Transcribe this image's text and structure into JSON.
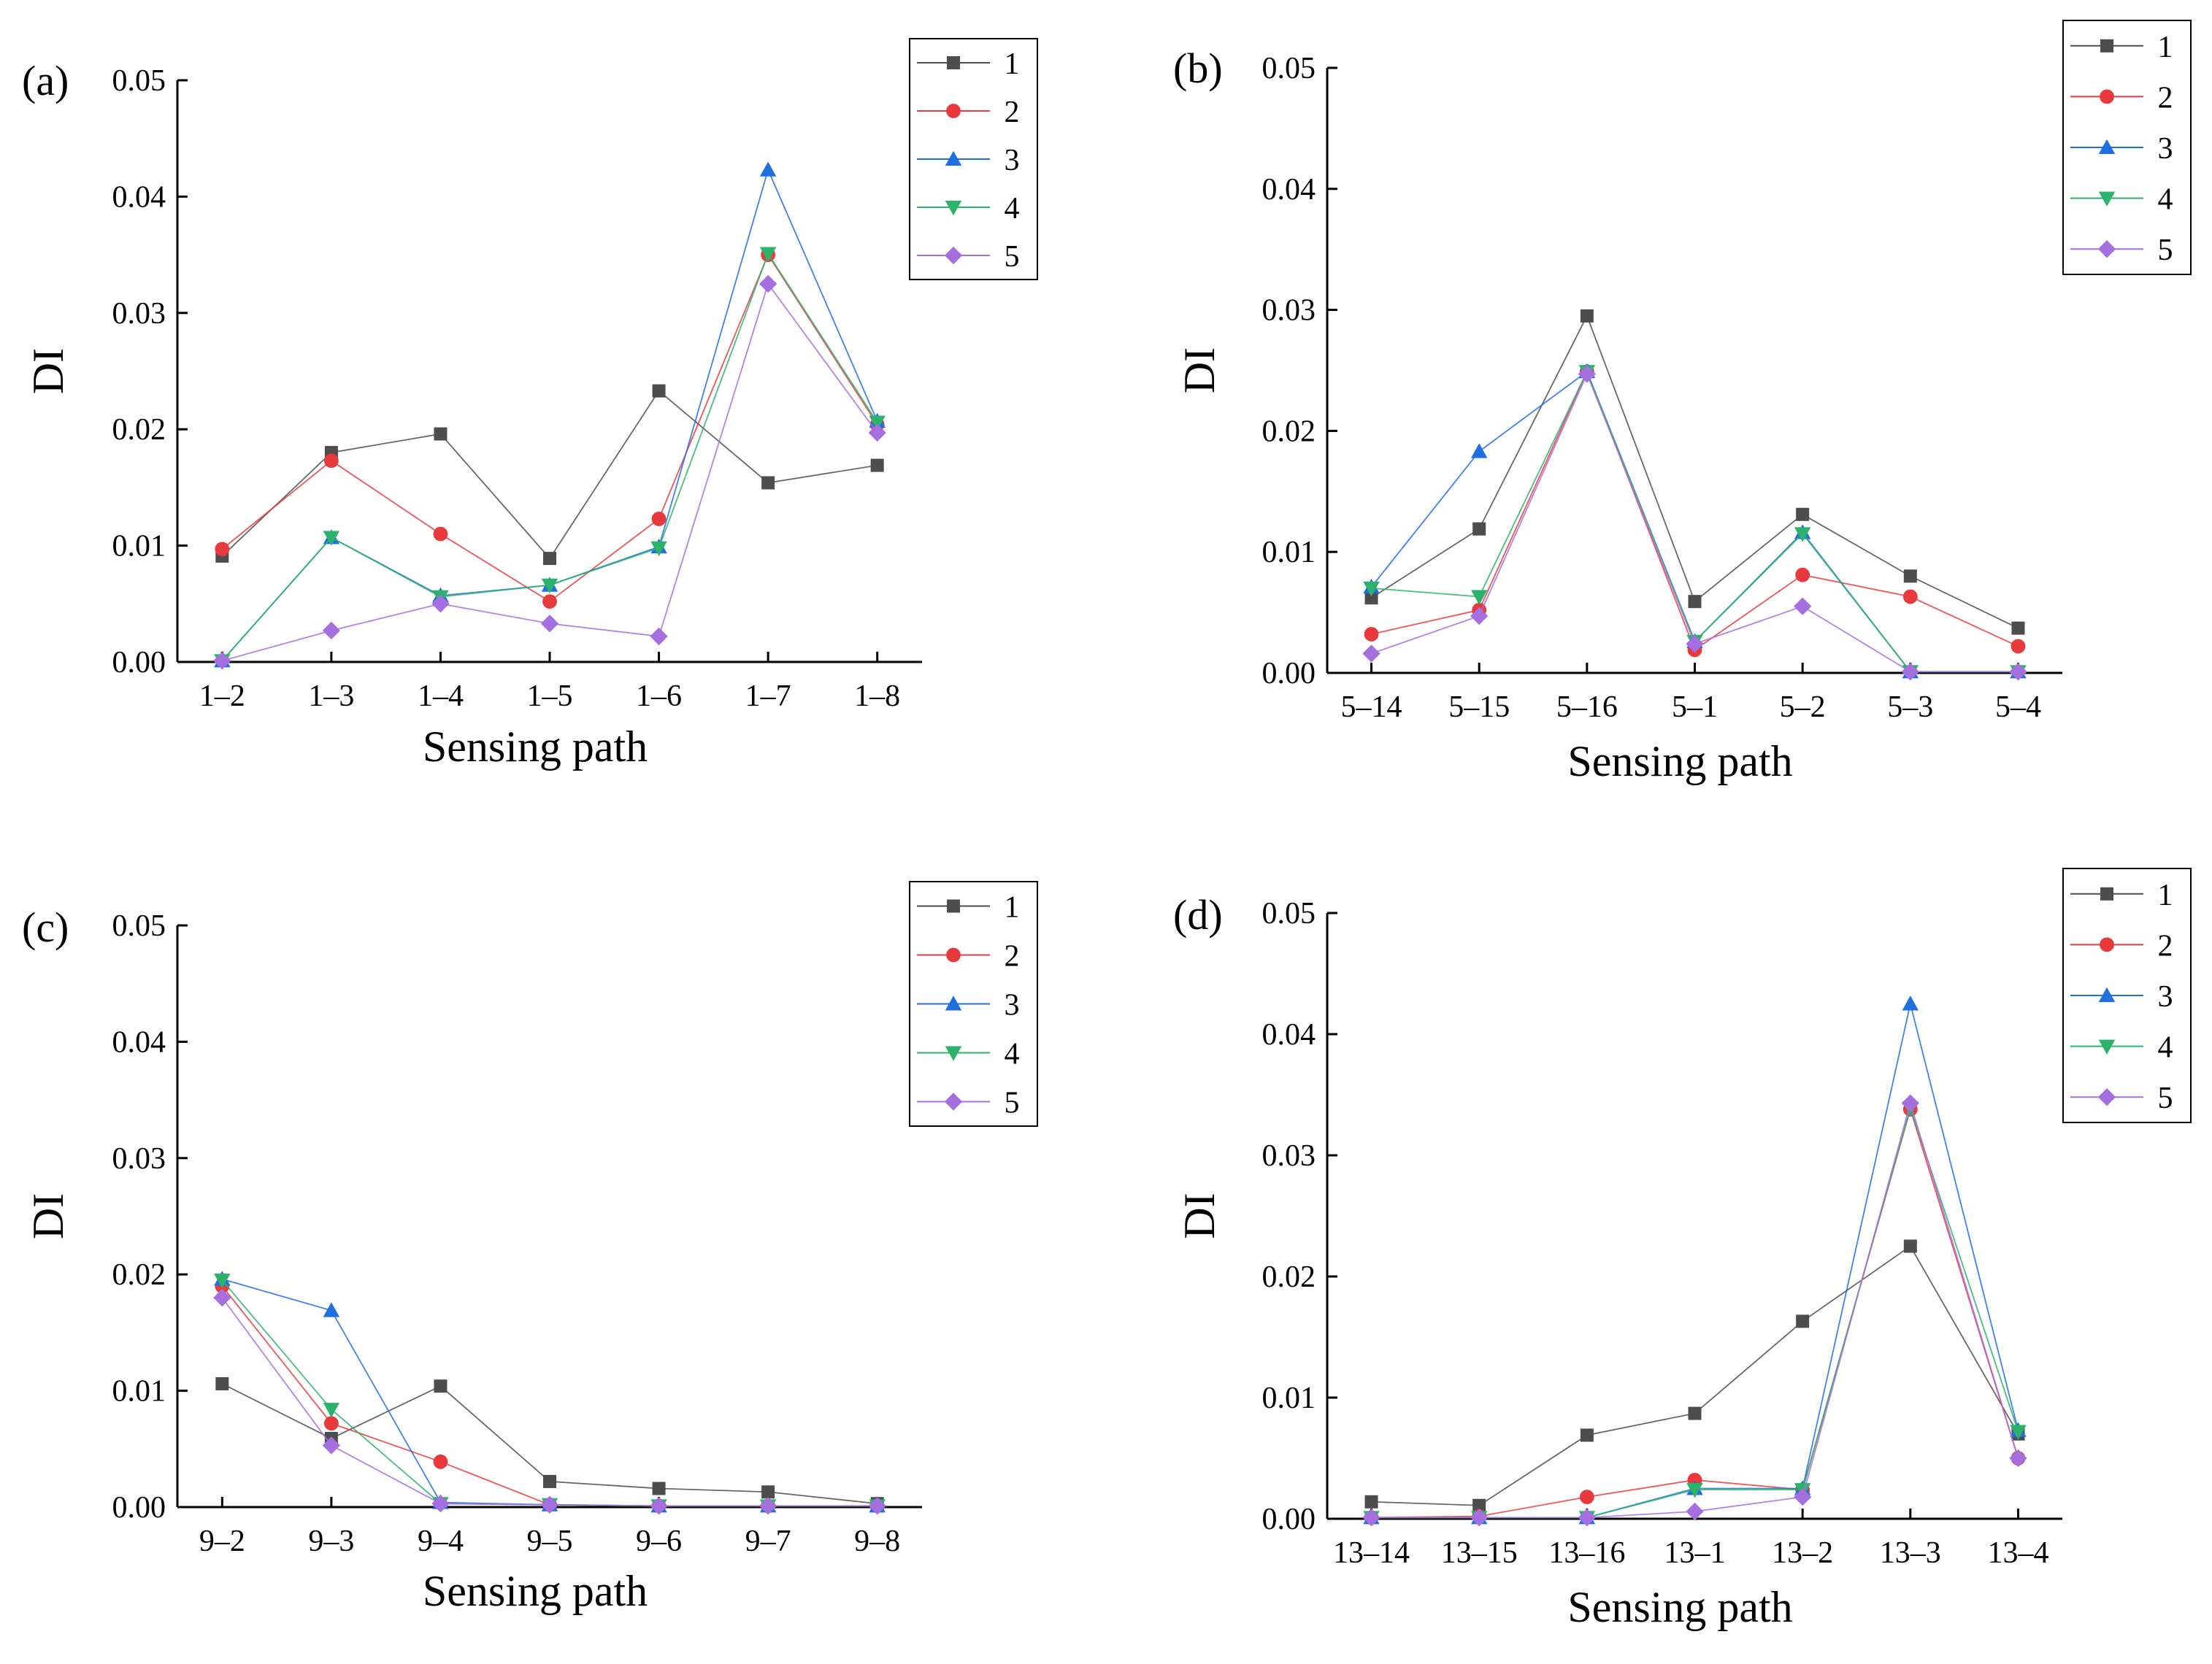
{
  "chart_data": [
    {
      "type": "line",
      "panel_label": "(a)",
      "xlabel": "Sensing path",
      "ylabel": "DI",
      "ylim": [
        0,
        0.05
      ],
      "yticks": [
        "0.00",
        "0.01",
        "0.02",
        "0.03",
        "0.04",
        "0.05"
      ],
      "categories": [
        "1–2",
        "1–3",
        "1–4",
        "1–5",
        "1–6",
        "1–7",
        "1–8"
      ],
      "legend_position": "top-right",
      "series": [
        {
          "name": "1",
          "values": [
            0.0091,
            0.018,
            0.0196,
            0.0089,
            0.0233,
            0.0154,
            0.0169
          ]
        },
        {
          "name": "2",
          "values": [
            0.0097,
            0.0173,
            0.011,
            0.0052,
            0.0123,
            0.035,
            0.0204
          ]
        },
        {
          "name": "3",
          "values": [
            0.0001,
            0.0107,
            0.0057,
            0.0066,
            0.0099,
            0.0423,
            0.0207
          ]
        },
        {
          "name": "4",
          "values": [
            0.0001,
            0.0107,
            0.0056,
            0.0066,
            0.0098,
            0.0351,
            0.0206
          ]
        },
        {
          "name": "5",
          "values": [
            0.0001,
            0.0027,
            0.005,
            0.0033,
            0.0022,
            0.0325,
            0.0197
          ]
        }
      ]
    },
    {
      "type": "line",
      "panel_label": "(b)",
      "xlabel": "Sensing path",
      "ylabel": "DI",
      "ylim": [
        0,
        0.05
      ],
      "yticks": [
        "0.00",
        "0.01",
        "0.02",
        "0.03",
        "0.04",
        "0.05"
      ],
      "categories": [
        "5–14",
        "5–15",
        "5–16",
        "5–1",
        "5–2",
        "5–3",
        "5–4"
      ],
      "legend_position": "top-right",
      "series": [
        {
          "name": "1",
          "values": [
            0.0062,
            0.0119,
            0.0295,
            0.0059,
            0.0131,
            0.008,
            0.0037
          ]
        },
        {
          "name": "2",
          "values": [
            0.0032,
            0.0052,
            0.0249,
            0.0019,
            0.0081,
            0.0063,
            0.0022
          ]
        },
        {
          "name": "3",
          "values": [
            0.0071,
            0.0183,
            0.0249,
            0.0026,
            0.0116,
            0.0001,
            0.0001
          ]
        },
        {
          "name": "4",
          "values": [
            0.007,
            0.0063,
            0.0249,
            0.0026,
            0.0115,
            0.0001,
            0.0001
          ]
        },
        {
          "name": "5",
          "values": [
            0.0016,
            0.0047,
            0.0247,
            0.0024,
            0.0055,
            0.0001,
            0.0001
          ]
        }
      ]
    },
    {
      "type": "line",
      "panel_label": "(c)",
      "xlabel": "Sensing path",
      "ylabel": "DI",
      "ylim": [
        0,
        0.05
      ],
      "yticks": [
        "0.00",
        "0.01",
        "0.02",
        "0.03",
        "0.04",
        "0.05"
      ],
      "categories": [
        "9–2",
        "9–3",
        "9–4",
        "9–5",
        "9–6",
        "9–7",
        "9–8"
      ],
      "legend_position": "top-right",
      "series": [
        {
          "name": "1",
          "values": [
            0.0106,
            0.0059,
            0.0104,
            0.0022,
            0.0016,
            0.0013,
            0.0003
          ]
        },
        {
          "name": "2",
          "values": [
            0.019,
            0.0072,
            0.0039,
            0.0002,
            0.0001,
            0.0001,
            0.0001
          ]
        },
        {
          "name": "3",
          "values": [
            0.0196,
            0.0169,
            0.0004,
            0.0002,
            0.0001,
            0.0001,
            0.0001
          ]
        },
        {
          "name": "4",
          "values": [
            0.0195,
            0.0084,
            0.0003,
            0.0002,
            0.0001,
            0.0001,
            0.0001
          ]
        },
        {
          "name": "5",
          "values": [
            0.018,
            0.0053,
            0.0003,
            0.0002,
            0.0001,
            0.0001,
            0.0001
          ]
        }
      ]
    },
    {
      "type": "line",
      "panel_label": "(d)",
      "xlabel": "Sensing path",
      "ylabel": "DI",
      "ylim": [
        0,
        0.05
      ],
      "yticks": [
        "0.00",
        "0.01",
        "0.02",
        "0.03",
        "0.04",
        "0.05"
      ],
      "categories": [
        "13–14",
        "13–15",
        "13–16",
        "13–1",
        "13–2",
        "13–3",
        "13–4"
      ],
      "legend_position": "top-right",
      "series": [
        {
          "name": "1",
          "values": [
            0.0014,
            0.0011,
            0.0069,
            0.0087,
            0.0163,
            0.0225,
            0.007
          ]
        },
        {
          "name": "2",
          "values": [
            0.0001,
            0.0002,
            0.0018,
            0.0032,
            0.0024,
            0.0338,
            0.005
          ]
        },
        {
          "name": "3",
          "values": [
            0.0001,
            0.0001,
            0.0001,
            0.0025,
            0.0025,
            0.0425,
            0.0073
          ]
        },
        {
          "name": "4",
          "values": [
            0.0001,
            0.0001,
            0.0001,
            0.0024,
            0.0024,
            0.0339,
            0.0072
          ]
        },
        {
          "name": "5",
          "values": [
            0.0001,
            0.0001,
            0.0001,
            0.0006,
            0.0018,
            0.0343,
            0.005
          ]
        }
      ]
    }
  ],
  "series_styles": [
    {
      "marker": "square",
      "color": "#4d4d4d"
    },
    {
      "marker": "circle",
      "color": "#e8393d"
    },
    {
      "marker": "triangle-up",
      "color": "#1f6fe0"
    },
    {
      "marker": "triangle-down",
      "color": "#2db26b"
    },
    {
      "marker": "diamond",
      "color": "#a56fe0"
    }
  ]
}
